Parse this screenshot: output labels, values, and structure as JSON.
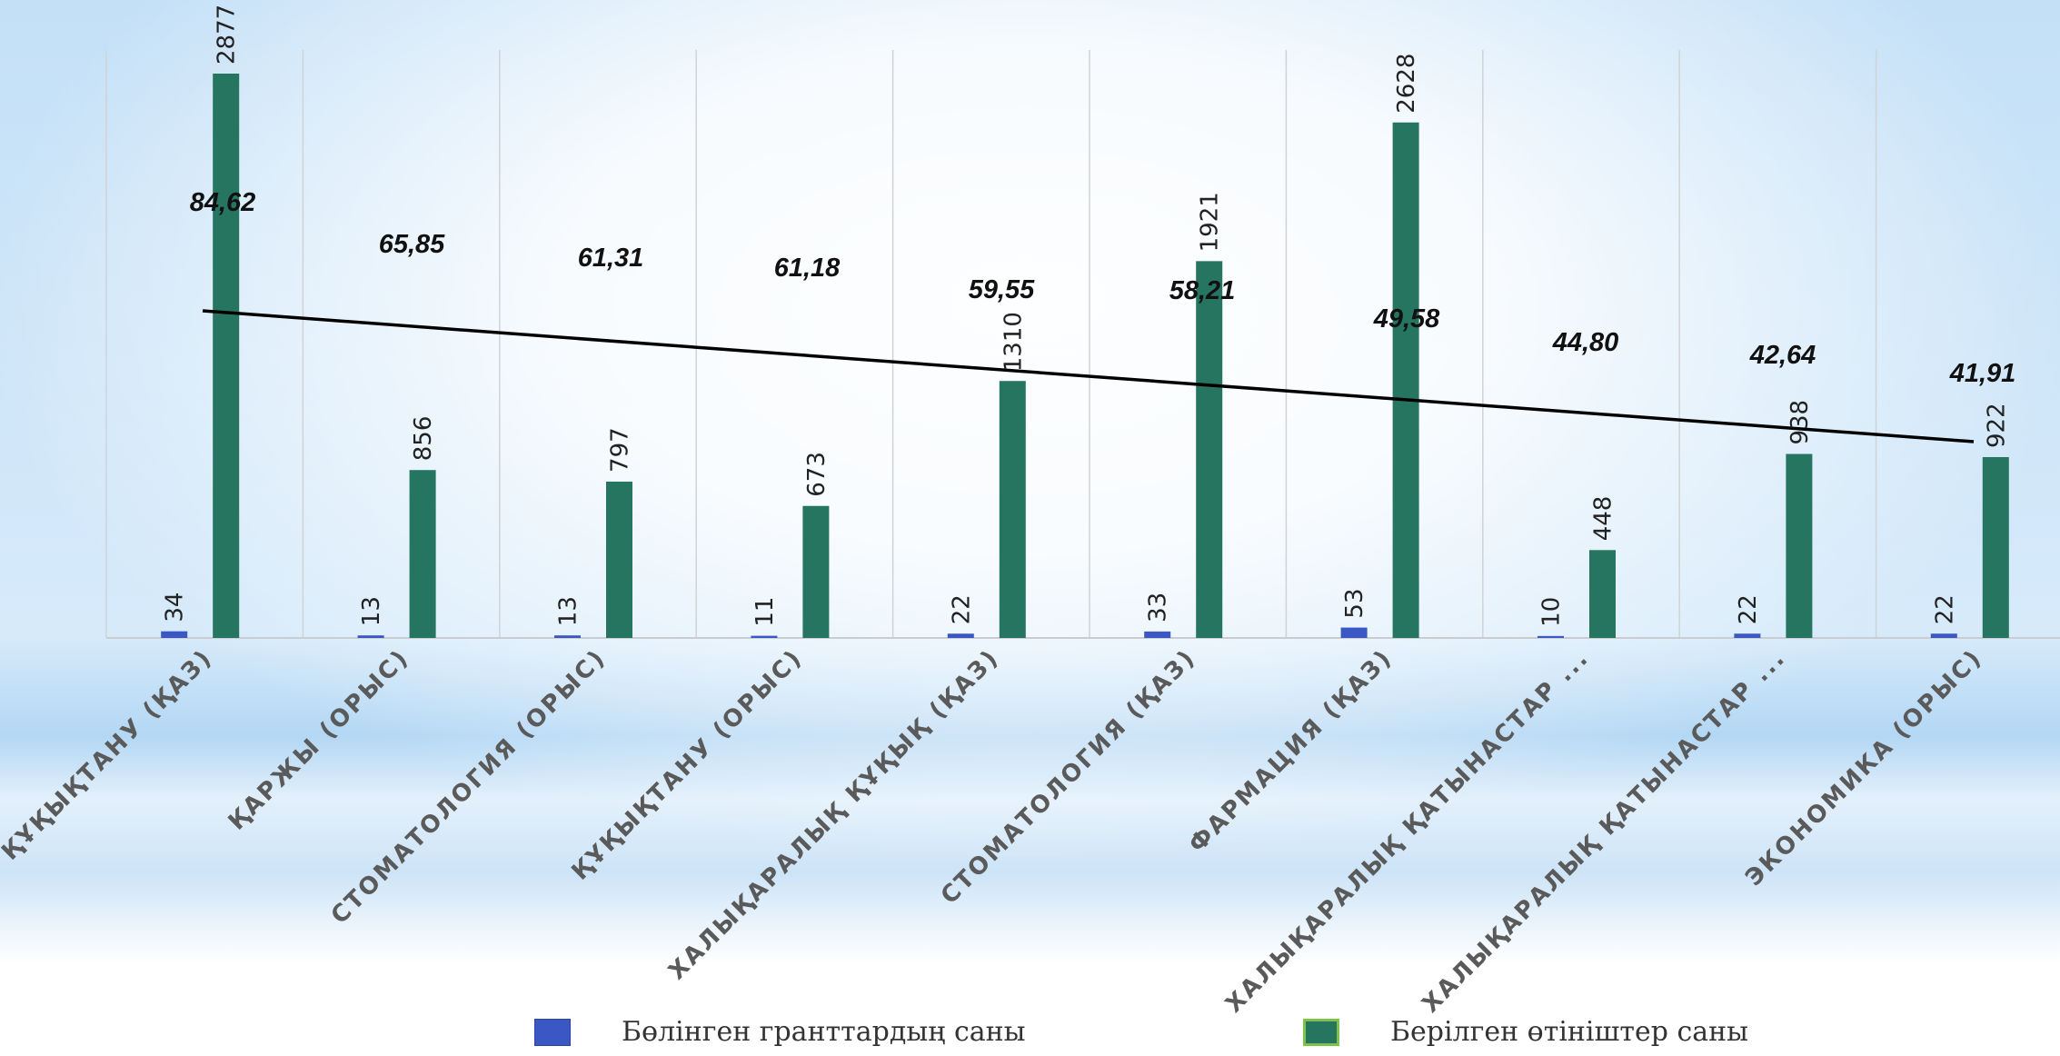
{
  "chart_data": {
    "type": "bar",
    "categories": [
      "ҚҰҚЫҚТАНУ (ҚАЗ)",
      "ҚАРЖЫ (ОРЫС)",
      "СТОМАТОЛОГИЯ (ОРЫС)",
      "ҚҰҚЫҚТАНУ (ОРЫС)",
      "ХАЛЫҚАРАЛЫҚ ҚҰҚЫҚ (ҚАЗ)",
      "СТОМАТОЛОГИЯ (ҚАЗ)",
      "ФАРМАЦИЯ (ҚАЗ)",
      "ХАЛЫҚАРАЛЫҚ ҚАТЫНАСТАР ...",
      "ХАЛЫҚАРАЛЫҚ ҚАТЫНАСТАР ...",
      "ЭКОНОМИКА (ОРЫС)"
    ],
    "series": [
      {
        "name": "Бөлінген гранттардың саны",
        "color": "#3a57c4",
        "values": [
          34,
          13,
          13,
          11,
          22,
          33,
          53,
          10,
          22,
          22
        ]
      },
      {
        "name": "Берілген өтініштер саны",
        "color": "#257560",
        "values": [
          2877,
          856,
          797,
          673,
          1310,
          1921,
          2628,
          448,
          938,
          922
        ]
      }
    ],
    "ratio_labels": [
      "84,62",
      "65,85",
      "61,31",
      "61,18",
      "59,55",
      "58,21",
      "49,58",
      "44,80",
      "42,64",
      "41,91"
    ],
    "ylim": [
      0,
      3000
    ],
    "grid": "vertical category separators",
    "trendline": "linear, black",
    "legend_position": "bottom",
    "title": "",
    "xlabel": "",
    "ylabel": ""
  }
}
